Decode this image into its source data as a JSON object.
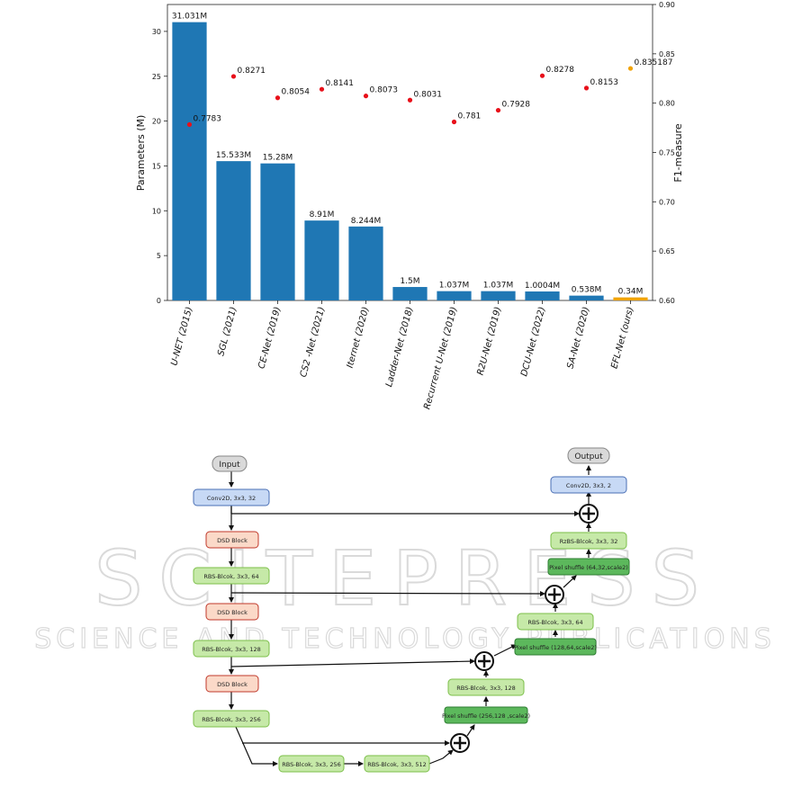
{
  "chart_data": {
    "type": "bar",
    "categories": [
      "U-NET (2015)",
      "SGL (2021)",
      "CE-Net (2019)",
      "CS2 -Net (2021)",
      "Iternet (2020)",
      "Ladder-Net (2018)",
      "Recurrent U-Net (2019)",
      "R2U-Net (2019)",
      "DCU-Net (2022)",
      "SA-Net (2020)",
      "EFL-Net (ours)"
    ],
    "series": [
      {
        "axis": "left",
        "kind": "bar",
        "values": [
          31.031,
          15.533,
          15.28,
          8.91,
          8.244,
          1.5,
          1.037,
          1.037,
          1.0004,
          0.538,
          0.34
        ],
        "labels": [
          "31.031M",
          "15.533M",
          "15.28M",
          "8.91M",
          "8.244M",
          "1.5M",
          "1.037M",
          "1.037M",
          "1.0004M",
          "0.538M",
          "0.34M"
        ],
        "colors": [
          "#1f77b4",
          "#1f77b4",
          "#1f77b4",
          "#1f77b4",
          "#1f77b4",
          "#1f77b4",
          "#1f77b4",
          "#1f77b4",
          "#1f77b4",
          "#1f77b4",
          "#f0a30a"
        ]
      },
      {
        "axis": "right",
        "kind": "scatter",
        "values": [
          0.7783,
          0.8271,
          0.8054,
          0.8141,
          0.8073,
          0.8031,
          0.781,
          0.7928,
          0.8278,
          0.8153,
          0.835187
        ],
        "labels": [
          "0.7783",
          "0.8271",
          "0.8054",
          "0.8141",
          "0.8073",
          "0.8031",
          "0.781",
          "0.7928",
          "0.8278",
          "0.8153",
          "0.835187"
        ],
        "colors": [
          "#e8101a",
          "#e8101a",
          "#e8101a",
          "#e8101a",
          "#e8101a",
          "#e8101a",
          "#e8101a",
          "#e8101a",
          "#e8101a",
          "#e8101a",
          "#f0a30a"
        ]
      }
    ],
    "ylabel": "Parameters (M)",
    "ylabel_right": "F1-measure",
    "ylim": [
      0,
      33
    ],
    "ylim_right": [
      0.6,
      0.9
    ],
    "yticks": [
      "0",
      "5",
      "10",
      "15",
      "20",
      "25",
      "30"
    ],
    "yticks_right": [
      "0.60",
      "0.65",
      "0.70",
      "0.75",
      "0.80",
      "0.85",
      "0.90"
    ],
    "grid": false
  },
  "diagram": {
    "nodes": {
      "input": "Input",
      "conv_in": "Conv2D, 3x3, 32",
      "dsd1": "DSD Block",
      "rbs64": "RBS-Blcok, 3x3, 64",
      "dsd2": "DSD Block",
      "rbs128": "RBS-Blcok, 3x3, 128",
      "dsd3": "DSD Block",
      "rbs256": "RBS-Blcok, 3x3, 256",
      "rbs256b": "RBS-Blcok, 3x3, 256",
      "rbs512": "RBS-Blcok, 3x3, 512",
      "ps256": "Pixel shuffle (256,128 ,scale2)",
      "rbs128r": "RBS-Blcok, 3x3, 128",
      "ps128": "Pixel shuffle (128,64,scale2)",
      "rbs64r": "RBS-Blcok, 3x3, 64",
      "ps64": "Pixel shuffle (64,32,scale2)",
      "rbs32r": "RzBS-Blcok, 3x3, 32",
      "conv_out": "Conv2D, 3x3, 2",
      "output": "Output"
    }
  },
  "watermark": {
    "line1": "SCITEPRESS",
    "line2": "SCIENCE AND TECHNOLOGY PUBLICATIONS"
  }
}
